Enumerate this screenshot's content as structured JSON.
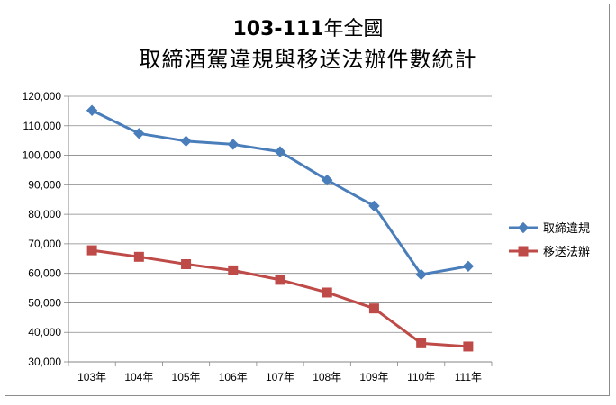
{
  "chart_data": {
    "type": "line",
    "title_part_bold": "103-111",
    "title_part_rest": "年全國",
    "subtitle": "取締酒駕違規與移送法辦件數統計",
    "categories": [
      "103年",
      "104年",
      "105年",
      "106年",
      "107年",
      "108年",
      "109年",
      "110年",
      "111年"
    ],
    "ylim": [
      30000,
      120000
    ],
    "yticks": [
      "30,000",
      "40,000",
      "50,000",
      "60,000",
      "70,000",
      "80,000",
      "90,000",
      "100,000",
      "110,000",
      "120,000"
    ],
    "grid": true,
    "legend_position": "right",
    "series": [
      {
        "name": "取締違規",
        "color": "#4a7ebb",
        "marker": "diamond",
        "values": [
          115200,
          107400,
          104800,
          103700,
          101200,
          91600,
          82800,
          59600,
          62400
        ]
      },
      {
        "name": "移送法辦",
        "color": "#be4b48",
        "marker": "square",
        "values": [
          67800,
          65600,
          63100,
          61000,
          57800,
          53500,
          48100,
          36300,
          35200
        ]
      }
    ]
  }
}
